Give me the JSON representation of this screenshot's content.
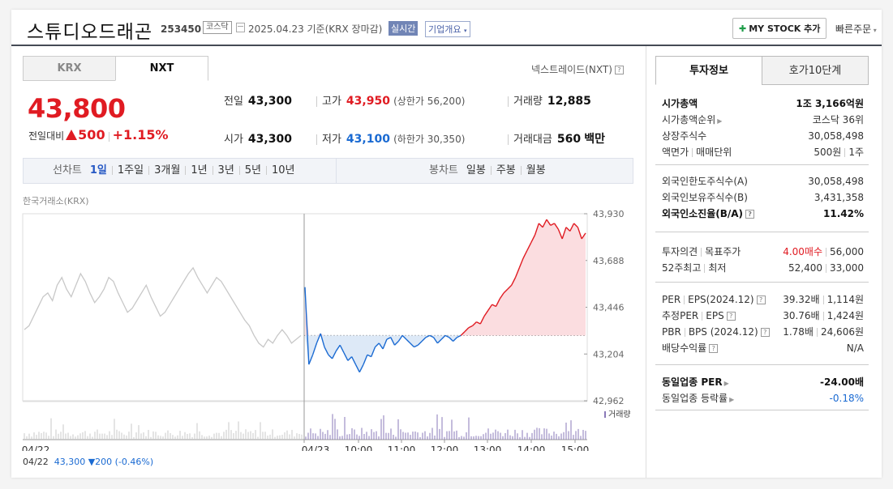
{
  "header": {
    "name": "스튜디오드래곤",
    "code": "253450",
    "market_tag": "코스닥",
    "date_text": "2025.04.23  기준(KRX 장마감)",
    "realtime_label": "실시간",
    "overview_label": "기업개요",
    "mystock_label": "MY STOCK 추가",
    "quick_order_label": "빠른주문"
  },
  "market_tabs": {
    "krx": "KRX",
    "nxt": "NXT"
  },
  "nxt_label": "넥스트레이드(NXT)",
  "price": {
    "current": "43,800",
    "change_label": "전일대비",
    "change": "500",
    "change_pct": "+1.15%"
  },
  "stats": {
    "prev_label": "전일",
    "prev": "43,300",
    "high_label": "고가",
    "high": "43,950",
    "upper_limit": "(상한가 56,200)",
    "volume_label": "거래량",
    "volume": "12,885",
    "open_label": "시가",
    "open": "43,300",
    "low_label": "저가",
    "low": "43,100",
    "lower_limit": "(하한가 30,350)",
    "amount_label": "거래대금",
    "amount": "560",
    "amount_unit": "백만"
  },
  "periods": {
    "line_label": "선차트",
    "line": [
      "1일",
      "1주일",
      "3개월",
      "1년",
      "3년",
      "5년",
      "10년"
    ],
    "candle_label": "봉차트",
    "candle": [
      "일봉",
      "주봉",
      "월봉"
    ]
  },
  "chart_source": "한국거래소(KRX)",
  "chart_data": {
    "type": "line",
    "title": "",
    "y_ticks": [
      "43,930",
      "43,688",
      "43,446",
      "43,204",
      "42,962"
    ],
    "ylim": [
      42962,
      43930
    ],
    "baseline": 43300,
    "x_ticks": [
      "04/22",
      "04/23",
      "10:00",
      "11:00",
      "12:00",
      "13:00",
      "14:00",
      "15:00"
    ],
    "volume_label": "거래량",
    "prev_day": [
      43330,
      43350,
      43400,
      43450,
      43500,
      43520,
      43480,
      43560,
      43600,
      43540,
      43500,
      43560,
      43620,
      43580,
      43520,
      43470,
      43500,
      43540,
      43600,
      43580,
      43520,
      43470,
      43420,
      43440,
      43480,
      43520,
      43560,
      43500,
      43450,
      43400,
      43420,
      43460,
      43500,
      43540,
      43580,
      43620,
      43650,
      43600,
      43560,
      43520,
      43560,
      43600,
      43580,
      43540,
      43500,
      43460,
      43420,
      43380,
      43350,
      43300,
      43260,
      43240,
      43280,
      43260,
      43300,
      43330,
      43300,
      43260,
      43280,
      43300
    ],
    "today": [
      43550,
      43150,
      43200,
      43260,
      43310,
      43240,
      43200,
      43180,
      43220,
      43250,
      43210,
      43170,
      43190,
      43150,
      43110,
      43150,
      43200,
      43190,
      43240,
      43260,
      43230,
      43280,
      43290,
      43250,
      43270,
      43300,
      43280,
      43260,
      43240,
      43250,
      43270,
      43290,
      43300,
      43290,
      43260,
      43280,
      43300,
      43290,
      43270,
      43290,
      43300,
      43320,
      43340,
      43350,
      43370,
      43360,
      43400,
      43430,
      43460,
      43450,
      43490,
      43520,
      43540,
      43560,
      43600,
      43650,
      43700,
      43740,
      43780,
      43820,
      43880,
      43860,
      43900,
      43870,
      43880,
      43850,
      43800,
      43860,
      43840,
      43880,
      43860,
      43800,
      43830
    ]
  },
  "prev_day_line": {
    "date": "04/22",
    "price": "43,300",
    "change": "▼200",
    "pct": "(-0.46%)"
  },
  "right_tabs": {
    "invest": "투자정보",
    "quote": "호가10단계"
  },
  "invest": {
    "market_cap_label": "시가총액",
    "market_cap": "1조 3,166억원",
    "rank_label": "시가총액순위",
    "rank": "코스닥 36위",
    "shares_label": "상장주식수",
    "shares": "30,058,498",
    "par_label": "액면가",
    "unit_label": "매매단위",
    "par": "500원",
    "unit": "1주",
    "foreign_limit_label": "외국인한도주식수(A)",
    "foreign_limit": "30,058,498",
    "foreign_hold_label": "외국인보유주식수(B)",
    "foreign_hold": "3,431,358",
    "foreign_ratio_label": "외국인소진율(B/A)",
    "foreign_ratio": "11.42%",
    "opinion_label": "투자의견",
    "target_label": "목표주가",
    "opinion": "4.00매수",
    "target": "56,000",
    "high52_label": "52주최고",
    "low52_label": "최저",
    "high52": "52,400",
    "low52": "33,000",
    "per_label": "PER",
    "eps_label": "EPS(2024.12)",
    "per": "39.32배",
    "eps": "1,114원",
    "eper_label": "추정PER",
    "eeps_label": "EPS",
    "eper": "30.76배",
    "eeps": "1,424원",
    "pbr_label": "PBR",
    "bps_label": "BPS (2024.12)",
    "pbr": "1.78배",
    "bps": "24,606원",
    "div_label": "배당수익률",
    "div": "N/A",
    "sector_per_label": "동일업종 PER",
    "sector_per": "-24.00배",
    "sector_rate_label": "동일업종 등락률",
    "sector_rate": "-0.18%"
  },
  "colors": {
    "up": "#e01b22",
    "down": "#1a6ad2",
    "prev_line": "#c8c8c8",
    "volume": "#8a79b8"
  }
}
